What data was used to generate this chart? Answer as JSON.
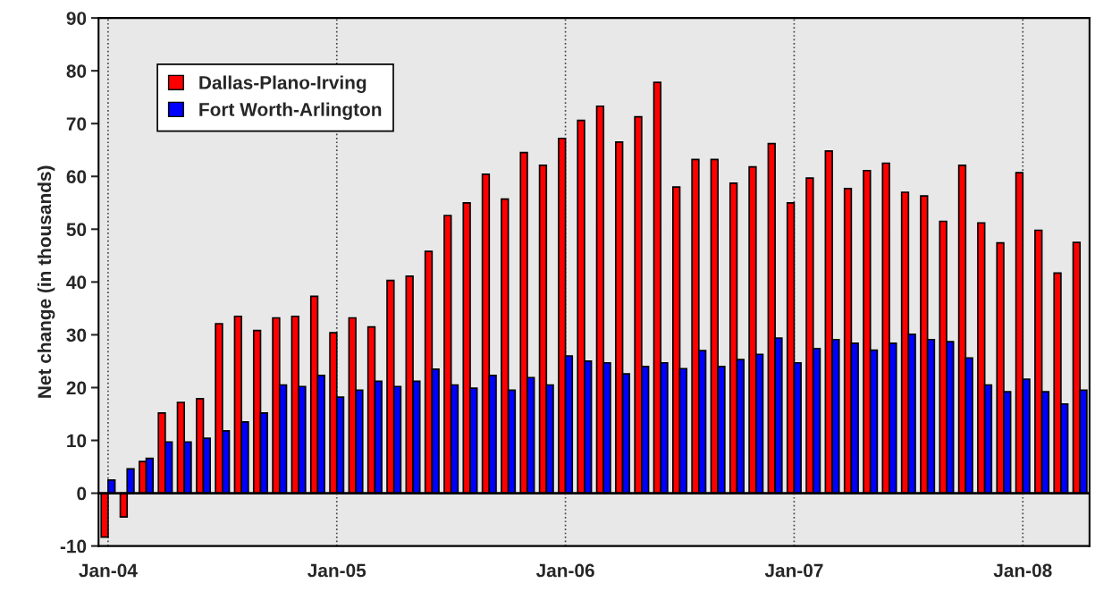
{
  "chart_data": {
    "type": "bar",
    "ylabel": "Net change (in thousands)",
    "categories": [
      "Jan-04",
      null,
      null,
      null,
      null,
      null,
      null,
      null,
      null,
      null,
      null,
      null,
      "Jan-05",
      null,
      null,
      null,
      null,
      null,
      null,
      null,
      null,
      null,
      null,
      null,
      "Jan-06",
      null,
      null,
      null,
      null,
      null,
      null,
      null,
      null,
      null,
      null,
      null,
      "Jan-07",
      null,
      null,
      null,
      null,
      null,
      null,
      null,
      null,
      null,
      null,
      null,
      "Jan-08",
      null,
      null,
      null
    ],
    "series": [
      {
        "name": "Dallas-Plano-Irving",
        "color": "#ff0000",
        "values": [
          -8.3,
          -4.5,
          6,
          15.2,
          17.2,
          17.9,
          32.1,
          33.5,
          30.8,
          33.2,
          33.5,
          37.3,
          30.4,
          33.2,
          31.5,
          40.3,
          41.1,
          45.8,
          52.6,
          55,
          60.4,
          55.7,
          64.5,
          62.1,
          67.2,
          70.6,
          73.3,
          66.5,
          71.3,
          77.8,
          58,
          63.2,
          63.2,
          58.7,
          61.8,
          66.2,
          55,
          59.7,
          64.8,
          57.7,
          61.1,
          62.5,
          57,
          56.3,
          51.5,
          62.1,
          51.2,
          47.4,
          60.7,
          49.8,
          41.7,
          47.5
        ]
      },
      {
        "name": "Fort Worth-Arlington",
        "color": "#0000ff",
        "values": [
          2.5,
          4.6,
          6.6,
          9.7,
          9.7,
          10.4,
          11.8,
          13.5,
          15.2,
          20.5,
          20.2,
          22.3,
          18.2,
          19.5,
          21.2,
          20.2,
          21.2,
          23.5,
          20.5,
          19.9,
          22.3,
          19.5,
          21.9,
          20.5,
          26,
          25,
          24.7,
          22.6,
          24,
          24.7,
          23.6,
          27,
          24,
          25.3,
          26.3,
          29.4,
          24.7,
          27.4,
          29.1,
          28.4,
          27.1,
          28.4,
          30.1,
          29.1,
          28.7,
          25.6,
          20.5,
          19.2,
          21.6,
          19.2,
          16.9,
          19.5
        ]
      }
    ],
    "ylim": [
      -10,
      90
    ],
    "yticks": [
      -10,
      0,
      10,
      20,
      30,
      40,
      50,
      60,
      70,
      80,
      90
    ],
    "grid": "x",
    "legend": "top left"
  }
}
